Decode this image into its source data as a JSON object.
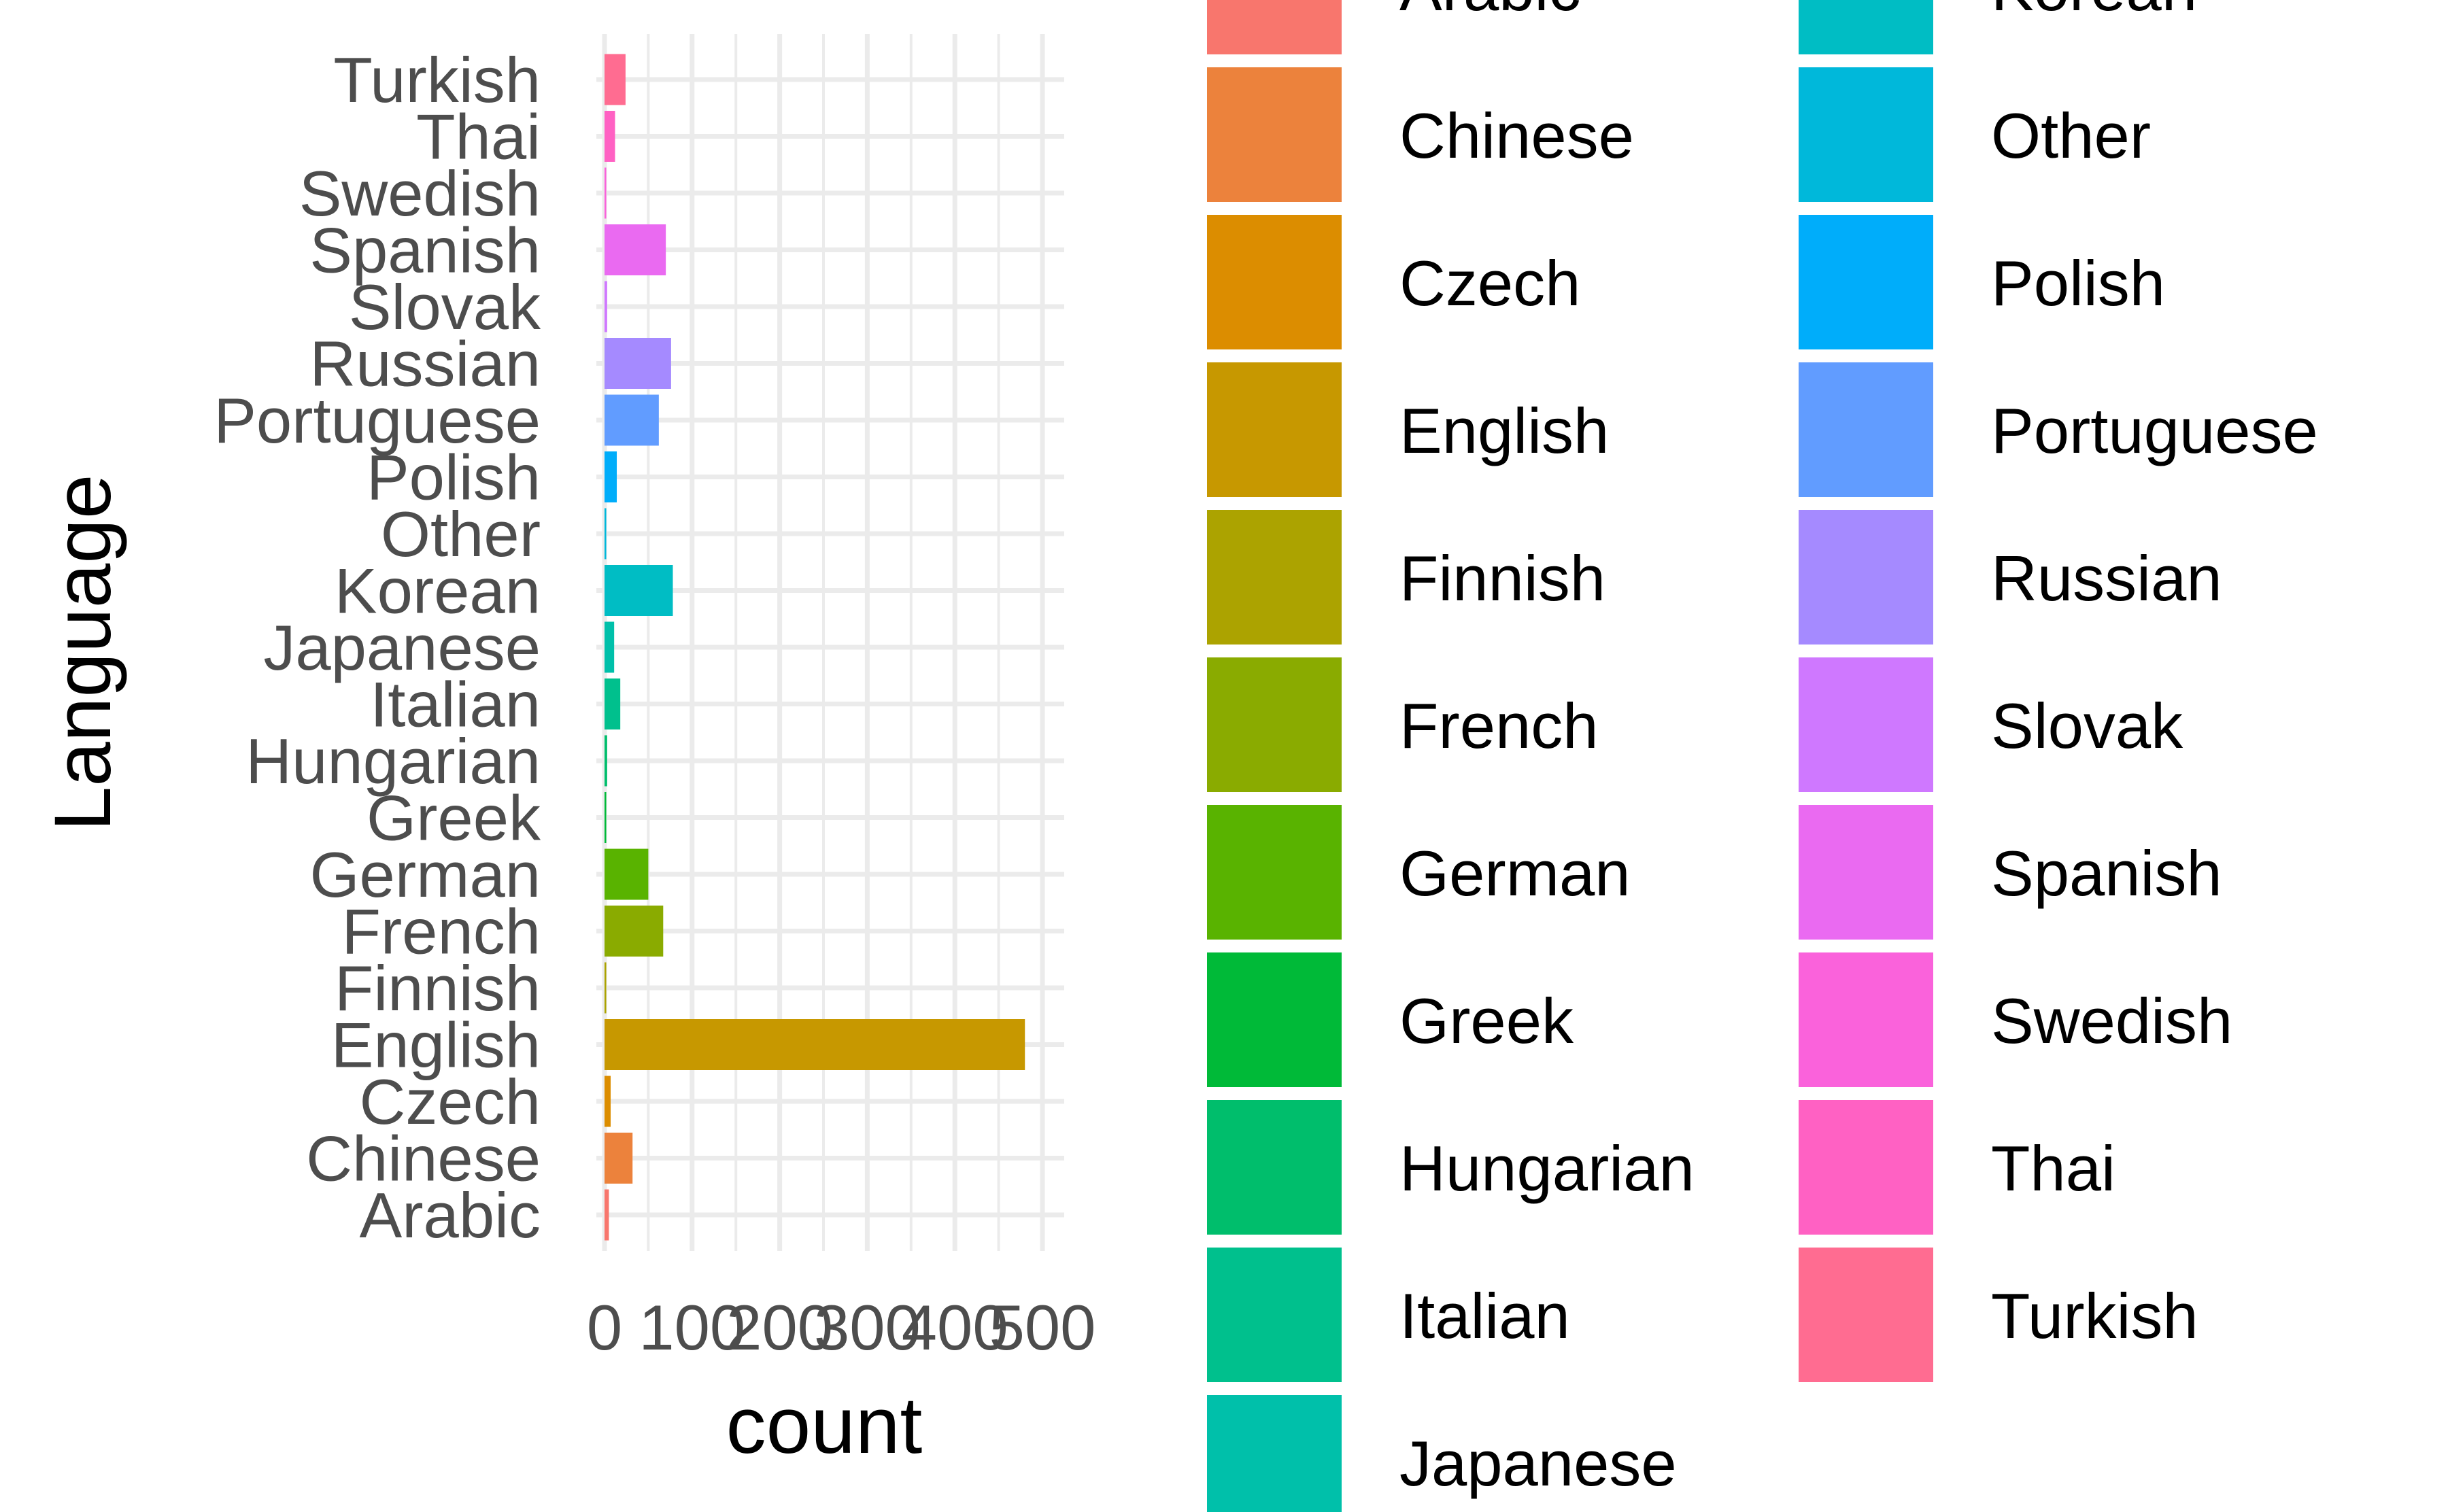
{
  "chart_data": {
    "type": "bar",
    "orientation": "horizontal",
    "title": "",
    "xlabel": "count",
    "ylabel": "Language",
    "xlim": [
      0,
      500
    ],
    "xticks": [
      0,
      100,
      200,
      300,
      400,
      500
    ],
    "xtick_labels": [
      "0",
      "100",
      "200",
      "300",
      "400",
      "500"
    ],
    "grid": true,
    "legend_position": "right",
    "legend_columns": 2,
    "categories": [
      "Arabic",
      "Chinese",
      "Czech",
      "English",
      "Finnish",
      "French",
      "German",
      "Greek",
      "Hungarian",
      "Italian",
      "Japanese",
      "Korean",
      "Other",
      "Polish",
      "Portuguese",
      "Russian",
      "Slovak",
      "Spanish",
      "Swedish",
      "Thai",
      "Turkish"
    ],
    "values": [
      5,
      32,
      7,
      480,
      2,
      67,
      50,
      2,
      3,
      18,
      11,
      78,
      2,
      14,
      62,
      76,
      3,
      70,
      2,
      12,
      24
    ],
    "colors": [
      "#F8766D",
      "#EC823C",
      "#DC8D00",
      "#C79800",
      "#ACA300",
      "#8AAB00",
      "#59B300",
      "#00BA38",
      "#00BE6C",
      "#00C08D",
      "#00C0AA",
      "#00BDC4",
      "#00B8DA",
      "#00ADFA",
      "#619CFF",
      "#A58AFF",
      "#CF78FF",
      "#EA6AF1",
      "#FA62DB",
      "#FF61C3",
      "#FF6C91"
    ]
  }
}
